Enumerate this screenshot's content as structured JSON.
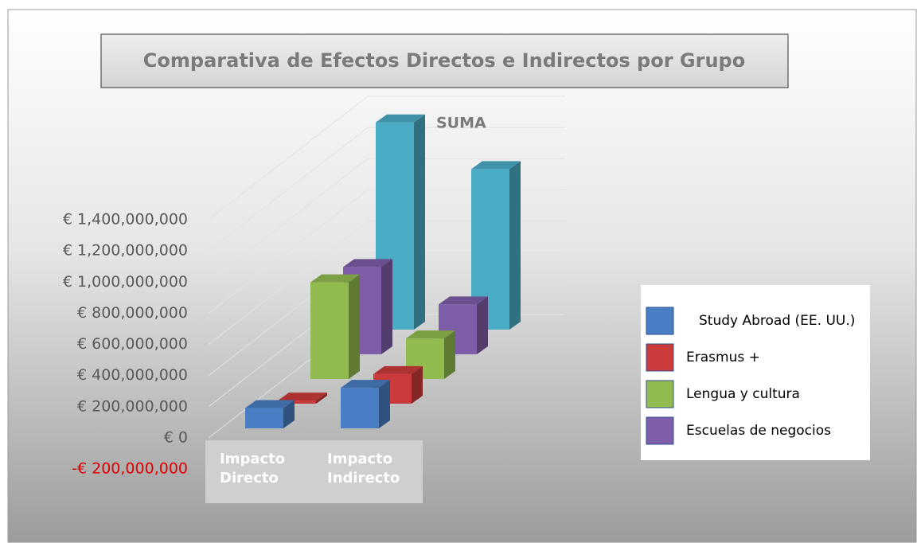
{
  "chart_data": {
    "type": "bar3d",
    "title": "Comparativa de Efectos Directos e Indirectos por Grupo",
    "categories": [
      "Impacto Directo",
      "Impacto Indirecto"
    ],
    "series": [
      {
        "name": "Study Abroad (EE. UU.)",
        "color": "#4a7ec4",
        "values": [
          130000000,
          260000000
        ]
      },
      {
        "name": "Erasmus +",
        "color": "#cc3b3b",
        "values": [
          20000000,
          190000000
        ]
      },
      {
        "name": "Lengua y cultura",
        "color": "#92bb4f",
        "values": [
          620000000,
          260000000
        ]
      },
      {
        "name": "Escuelas de negocios",
        "color": "#7e5ea8",
        "values": [
          560000000,
          320000000
        ]
      },
      {
        "name": "SUMA",
        "color": "#4bacc6",
        "values": [
          1330000000,
          1030000000
        ]
      }
    ],
    "legend_series": [
      0,
      1,
      2,
      3
    ],
    "ylim": [
      -200000000,
      1400000000
    ],
    "yticks": [
      {
        "value": -200000000,
        "label": "-€ 200,000,000"
      },
      {
        "value": 0,
        "label": "€ 0"
      },
      {
        "value": 200000000,
        "label": "€ 200,000,000"
      },
      {
        "value": 400000000,
        "label": "€ 400,000,000"
      },
      {
        "value": 600000000,
        "label": "€ 600,000,000"
      },
      {
        "value": 800000000,
        "label": "€ 800,000,000"
      },
      {
        "value": 1000000000,
        "label": "€ 1,000,000,000"
      },
      {
        "value": 1200000000,
        "label": "€ 1,200,000,000"
      },
      {
        "value": 1400000000,
        "label": "€ 1,400,000,000"
      }
    ],
    "grid": true
  }
}
